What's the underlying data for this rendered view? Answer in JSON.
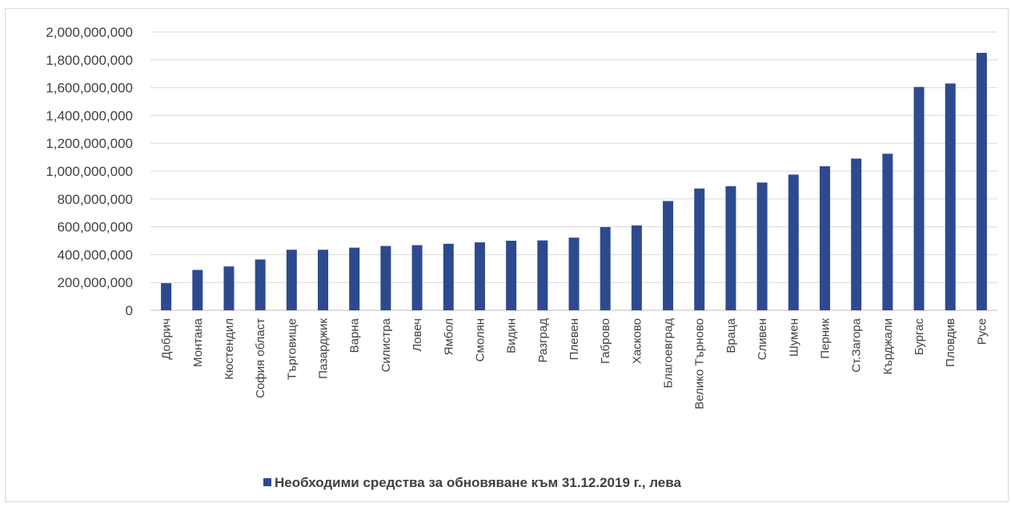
{
  "chart_data": {
    "type": "bar",
    "categories": [
      "Добрич",
      "Монтана",
      "Кюстендил",
      "София област",
      "Търговище",
      "Пазарджик",
      "Варна",
      "Силистра",
      "Ловеч",
      "Ямбол",
      "Смолян",
      "Видин",
      "Разград",
      "Плевен",
      "Габрово",
      "Хасково",
      "Благоевград",
      "Велико Търново",
      "Враца",
      "Сливен",
      "Шумен",
      "Перник",
      "Ст.Загора",
      "Кърджали",
      "Бургас",
      "Пловдив",
      "Русе"
    ],
    "series": [
      {
        "name": "Необходими средства за обновяване  към 31.12.2019 г., лева",
        "color": "#2e4a8f",
        "values": [
          195000000,
          290000000,
          315000000,
          365000000,
          435000000,
          435000000,
          450000000,
          462000000,
          468000000,
          478000000,
          488000000,
          500000000,
          502000000,
          522000000,
          598000000,
          610000000,
          785000000,
          875000000,
          892000000,
          918000000,
          975000000,
          1035000000,
          1090000000,
          1125000000,
          1605000000,
          1630000000,
          1850000000
        ]
      }
    ],
    "y_ticks": [
      "0",
      "200,000,000",
      "400,000,000",
      "600,000,000",
      "800,000,000",
      "1,000,000,000",
      "1,200,000,000",
      "1,400,000,000",
      "1,600,000,000",
      "1,800,000,000",
      "2,000,000,000"
    ],
    "ylim": [
      0,
      2000000000
    ],
    "grid": true,
    "legend_position": "bottom",
    "title": "",
    "xlabel": "",
    "ylabel": ""
  }
}
